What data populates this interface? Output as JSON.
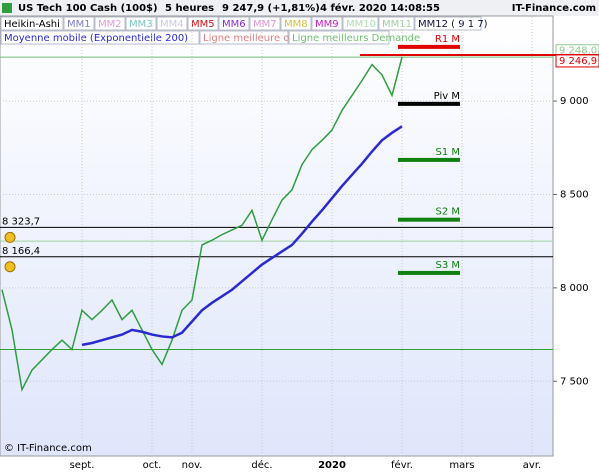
{
  "header": {
    "title": "US Tech 100 Cash (100$)",
    "period": "5 heures",
    "quote": "9 247,9 (+1,81%)",
    "datetime": "4 févr. 2020 14:08:55",
    "site": "IT-Finance.com",
    "copyright": "© IT-Finance.com"
  },
  "indicators": [
    {
      "name": "MM1",
      "color": "#7b7bd6"
    },
    {
      "name": "MM2",
      "color": "#e49ad8"
    },
    {
      "name": "MM3",
      "color": "#7cc6c6"
    },
    {
      "name": "MM4",
      "color": "#c9c9e6"
    },
    {
      "name": "MM5",
      "color": "#d01010"
    },
    {
      "name": "MM6",
      "color": "#8a2bd6"
    },
    {
      "name": "MM7",
      "color": "#e49ad8"
    },
    {
      "name": "MM8",
      "color": "#d6c040"
    },
    {
      "name": "MM9",
      "color": "#c020c0"
    },
    {
      "name": "MM10",
      "color": "#b0e0b0"
    },
    {
      "name": "MM11",
      "color": "#a0d0a0"
    },
    {
      "name": "MM12 ( 9 1 7)",
      "color": "#10104a"
    }
  ],
  "bid_line": {
    "name": "Ligne meilleure offre",
    "color": "#e08080"
  },
  "ask_line": {
    "name": "Ligne meilleurs Demande",
    "color": "#70c070"
  },
  "chart_data": {
    "type": "line",
    "categories": [
      null,
      null,
      null,
      null,
      null,
      null,
      null,
      null,
      "sept.",
      null,
      null,
      null,
      null,
      null,
      null,
      "oct.",
      null,
      null,
      null,
      "nov.",
      null,
      null,
      null,
      null,
      null,
      null,
      "déc.",
      null,
      null,
      null,
      null,
      null,
      null,
      "2020",
      null,
      null,
      null,
      null,
      null,
      null,
      "févr.",
      null,
      null,
      null,
      null,
      null,
      "mars",
      null,
      null,
      null,
      null,
      null,
      null,
      "avr.",
      null,
      null
    ],
    "series": [
      {
        "name": "Heikin-Ashi",
        "color": "#2e9e3e",
        "values": [
          7990,
          7775,
          7455,
          7560,
          7615,
          7670,
          7720,
          7670,
          7880,
          7830,
          7880,
          7935,
          7830,
          7880,
          7775,
          7670,
          7590,
          7720,
          7880,
          7935,
          8230,
          8255,
          8285,
          8310,
          8335,
          8415,
          8255,
          8365,
          8470,
          8525,
          8660,
          8740,
          8790,
          8845,
          8950,
          9030,
          9110,
          9195,
          9140,
          9030,
          9235,
          null,
          null,
          null,
          null,
          null,
          null,
          null,
          null,
          null,
          null,
          null,
          null,
          null,
          null,
          null
        ]
      },
      {
        "name": "Moyenne mobile (Exponentielle 200)",
        "color": "#2a2ad0",
        "values": [
          null,
          null,
          null,
          null,
          null,
          null,
          null,
          null,
          7695,
          7705,
          7720,
          7735,
          7750,
          7775,
          7765,
          7750,
          7740,
          7735,
          7760,
          7820,
          7880,
          7920,
          7955,
          7990,
          8035,
          8080,
          8125,
          8160,
          8195,
          8230,
          8290,
          8355,
          8415,
          8480,
          8545,
          8605,
          8665,
          8730,
          8790,
          8830,
          8865,
          null,
          null,
          null,
          null,
          null,
          null,
          null,
          null,
          null,
          null,
          null,
          null,
          null,
          null,
          null
        ]
      }
    ],
    "ylim": [
      7100,
      9450
    ],
    "yticks": [
      {
        "value": 7500,
        "label": "7 500"
      },
      {
        "value": 8000,
        "label": "8 000"
      },
      {
        "value": 8500,
        "label": "8 500"
      },
      {
        "value": 9000,
        "label": "9 000"
      }
    ],
    "grid": true,
    "levels": [
      {
        "value": 8323.7,
        "label": "8 323,7"
      },
      {
        "value": 8166.4,
        "label": "8 166,4"
      }
    ],
    "support_lines": [
      {
        "value": 7670,
        "color": "#30a030"
      },
      {
        "value": 8250,
        "color": "#a0d0a0"
      },
      {
        "value": 9235,
        "color": "#70c070"
      }
    ],
    "pivots": [
      {
        "value": 9290,
        "label": "R1 M",
        "color": "#e00000"
      },
      {
        "value": 8985,
        "label": "Piv M",
        "color": "#000000"
      },
      {
        "value": 8685,
        "label": "S1 M",
        "color": "#108010"
      },
      {
        "value": 8365,
        "label": "S2 M",
        "color": "#108010"
      },
      {
        "value": 8080,
        "label": "S3 M",
        "color": "#108010"
      }
    ],
    "price_tags": [
      {
        "value": 9248.0,
        "label": "9 248,0",
        "color": "#90c890"
      },
      {
        "value": 9246.9,
        "label": "9 246,9",
        "color": "#e00000"
      }
    ]
  }
}
